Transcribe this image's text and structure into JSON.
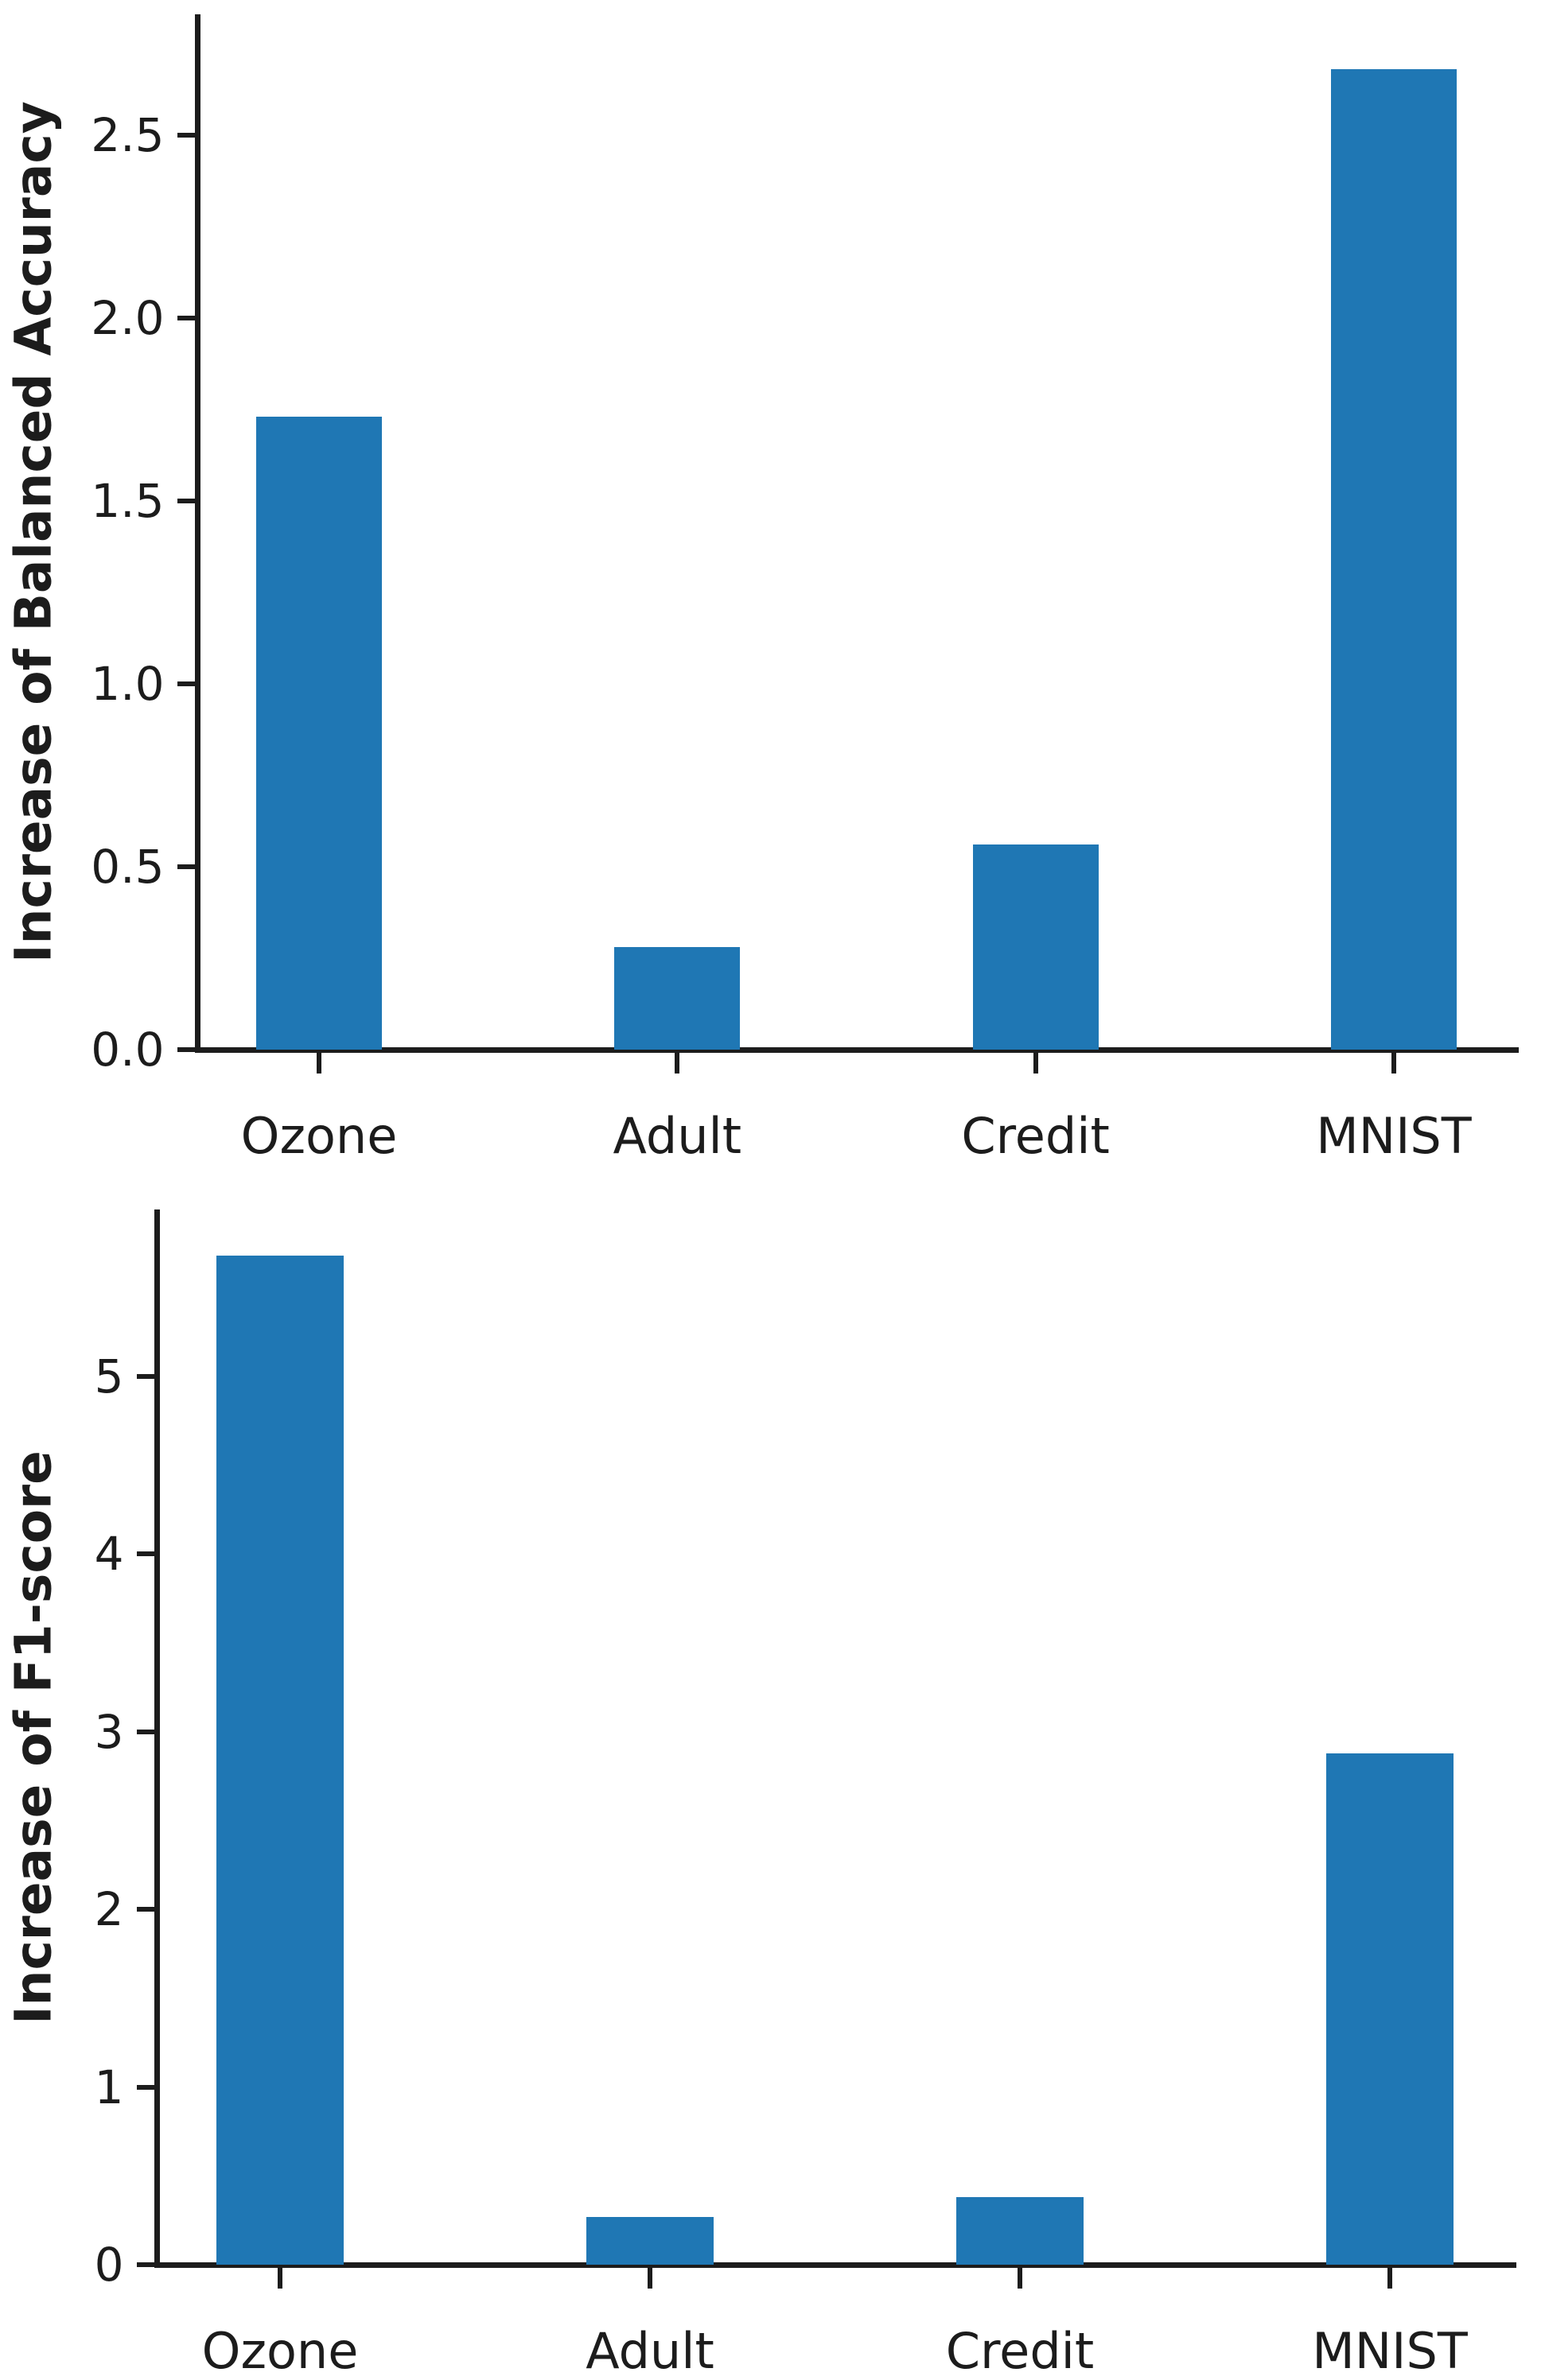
{
  "figure": {
    "background_color": "#ffffff",
    "bar_color": "#1f77b4",
    "axis_color": "#1c1c1c",
    "text_color": "#1c1c1c"
  },
  "chart_data": [
    {
      "type": "bar",
      "title": "",
      "xlabel": "",
      "ylabel": "Increase of Balanced Accuracy",
      "categories": [
        "Ozone",
        "Adult",
        "Credit",
        "MNIST"
      ],
      "values": [
        1.73,
        0.28,
        0.56,
        2.68
      ],
      "ylim": [
        0,
        2.83
      ],
      "yticks": [
        {
          "value": 0.0,
          "label": "0.0"
        },
        {
          "value": 0.5,
          "label": "0.5"
        },
        {
          "value": 1.0,
          "label": "1.0"
        },
        {
          "value": 1.5,
          "label": "1.5"
        },
        {
          "value": 2.0,
          "label": "2.0"
        },
        {
          "value": 2.5,
          "label": "2.5"
        }
      ],
      "grid": false,
      "legend": null,
      "spines": [
        "left",
        "bottom"
      ]
    },
    {
      "type": "bar",
      "title": "",
      "xlabel": "",
      "ylabel": "Increase of F1-score",
      "categories": [
        "Ozone",
        "Adult",
        "Credit",
        "MNIST"
      ],
      "values": [
        5.68,
        0.27,
        0.38,
        2.88
      ],
      "ylim": [
        0,
        5.94
      ],
      "yticks": [
        {
          "value": 0,
          "label": "0"
        },
        {
          "value": 1,
          "label": "1"
        },
        {
          "value": 2,
          "label": "2"
        },
        {
          "value": 3,
          "label": "3"
        },
        {
          "value": 4,
          "label": "4"
        },
        {
          "value": 5,
          "label": "5"
        }
      ],
      "grid": false,
      "legend": null,
      "spines": [
        "left",
        "bottom"
      ]
    }
  ]
}
